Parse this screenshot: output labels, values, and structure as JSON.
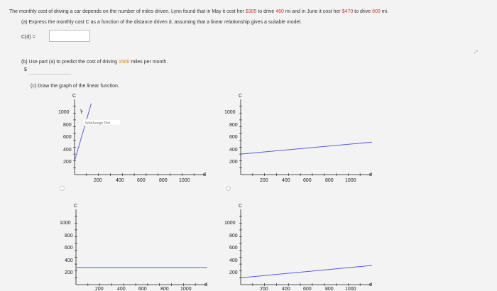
{
  "problem": {
    "intro_a": "The monthly cost of driving a car depends on the number of miles driven. Lynn found that in May it cost her ",
    "may_cost": "$385",
    "intro_b": " to drive ",
    "may_miles": "460",
    "intro_c": " mi and in June it cost her ",
    "june_cost": "$470",
    "intro_d": " to drive ",
    "june_miles": "800",
    "intro_e": " mi.",
    "part_a": "(a) Express the monthly cost C as a function of the distance driven d, assuming that a linear relationship gives a suitable model.",
    "part_a_label": "C(d) =",
    "part_b_a": "(b) Use part (a) to predict the cost of driving ",
    "part_b_miles": "1500",
    "part_b_b": " miles per month.",
    "part_b_prefix": "$",
    "part_c": "(c) Draw the graph of the linear function.",
    "webassign_label": "WebAssign Plot",
    "corner_icon": "expand-icon"
  },
  "graphs": [
    {
      "id": "tl",
      "ylabel": "C",
      "xlabel": "d",
      "yticks": [
        "1000",
        "800",
        "600",
        "400",
        "200"
      ],
      "xticks": [
        "200",
        "400",
        "600",
        "800",
        "1000"
      ],
      "line": {
        "x": [
          0,
          140
        ],
        "y": [
          200,
          1040
        ]
      },
      "color": "#5a5ae0"
    },
    {
      "id": "tr",
      "ylabel": "C",
      "xlabel": "d",
      "yticks": [
        "1000",
        "800",
        "600",
        "400",
        "200"
      ],
      "xticks": [
        "200",
        "400",
        "600",
        "800",
        "1000"
      ],
      "line": {
        "x": [
          0,
          1100
        ],
        "y": [
          300,
          475
        ]
      },
      "color": "#5a5ae0"
    },
    {
      "id": "bl",
      "ylabel": "C",
      "xlabel": "d",
      "yticks": [
        "1000",
        "800",
        "600",
        "400",
        "200"
      ],
      "xticks": [
        "200",
        "400",
        "600",
        "800",
        "1000"
      ],
      "line": {
        "x": [
          0,
          1100
        ],
        "y": [
          250,
          250
        ]
      },
      "color": "#5a5ae0"
    },
    {
      "id": "br",
      "ylabel": "C",
      "xlabel": "d",
      "yticks": [
        "1000",
        "800",
        "600",
        "400",
        "200"
      ],
      "xticks": [
        "200",
        "400",
        "600",
        "800",
        "1000"
      ],
      "line": {
        "x": [
          0,
          1100
        ],
        "y": [
          100,
          280
        ]
      },
      "color": "#5a5ae0"
    }
  ]
}
